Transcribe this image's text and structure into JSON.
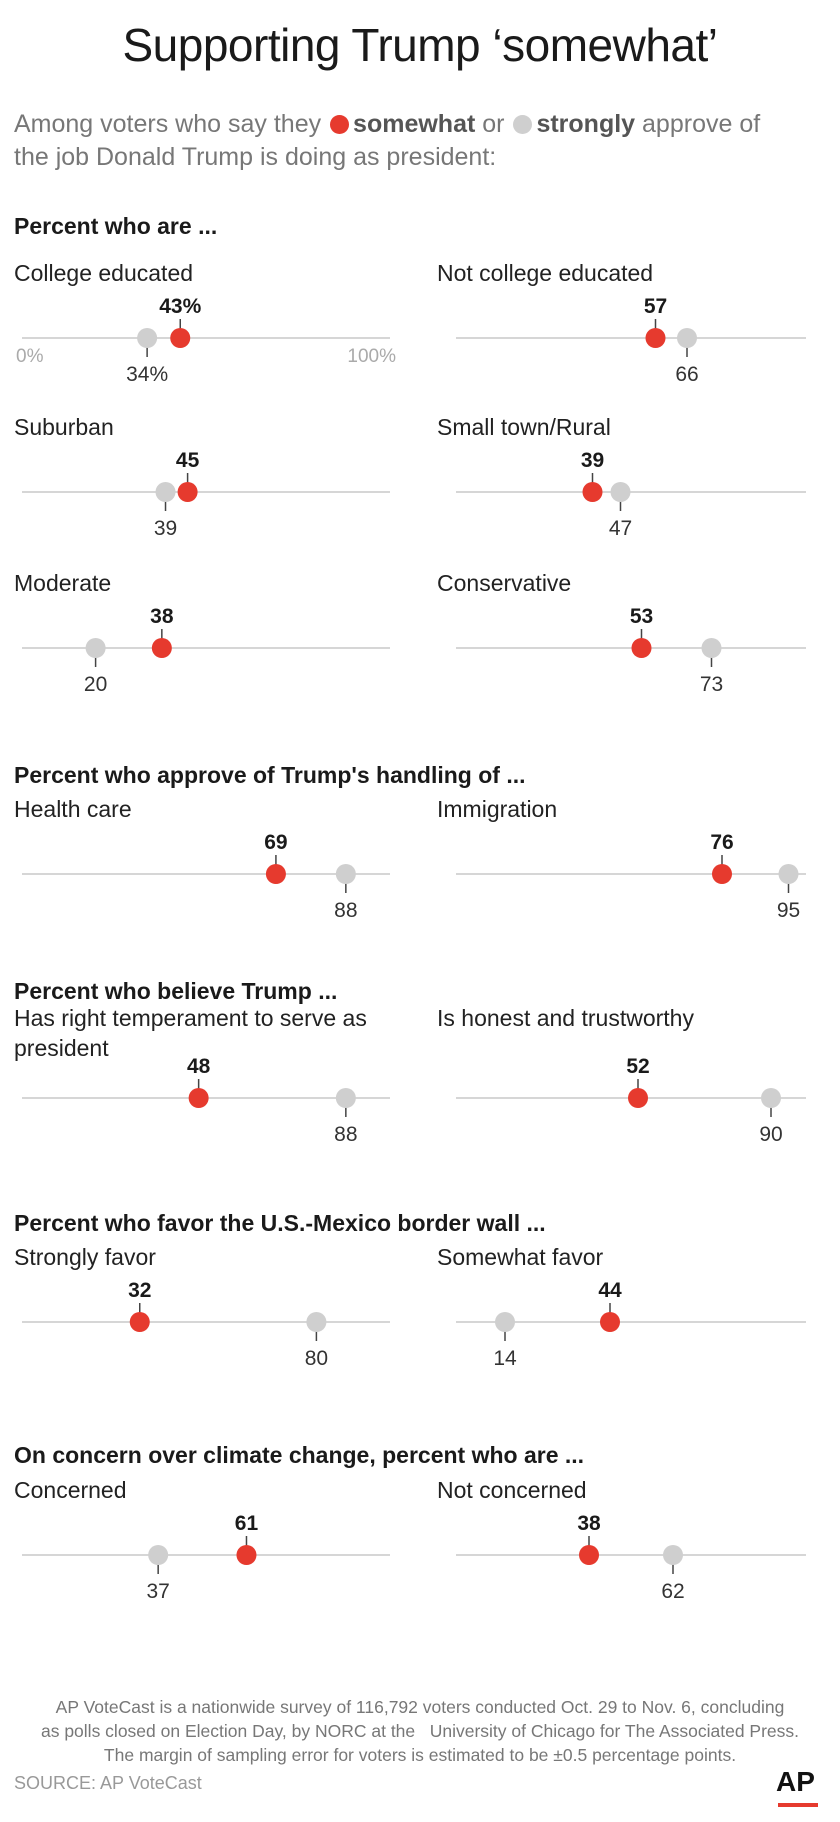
{
  "colors": {
    "somewhat": "#e63a2e",
    "strongly": "#cfcfcf"
  },
  "header": {
    "title": "Supporting Trump ‘somewhat’",
    "sub_pre": "Among voters who say they",
    "sub_somewhat": "somewhat",
    "sub_or": "or",
    "sub_strongly": "strongly",
    "sub_post": "approve of",
    "sub_line2": "the job Donald Trump is doing as president:"
  },
  "sections": {
    "s1": "Percent who are ...",
    "s2": "Percent who approve of Trump's handling of ...",
    "s3": "Percent who believe Trump ...",
    "s4": "Percent who favor the U.S.-Mexico border wall ...",
    "s5": "On concern over climate change, percent who are ..."
  },
  "chart_data": {
    "type": "dot",
    "axis_min_label": "0%",
    "axis_max_label": "100%",
    "xlim": [
      0,
      100
    ],
    "series": [
      {
        "name": "somewhat",
        "color": "#e63a2e"
      },
      {
        "name": "strongly",
        "color": "#cfcfcf"
      }
    ],
    "panels": [
      {
        "label": "College educated",
        "somewhat": 43,
        "strongly": 34,
        "somewhat_label": "43%",
        "strongly_label": "34%"
      },
      {
        "label": "Not college educated",
        "somewhat": 57,
        "strongly": 66,
        "somewhat_label": "57",
        "strongly_label": "66"
      },
      {
        "label": "Suburban",
        "somewhat": 45,
        "strongly": 39,
        "somewhat_label": "45",
        "strongly_label": "39"
      },
      {
        "label": "Small town/Rural",
        "somewhat": 39,
        "strongly": 47,
        "somewhat_label": "39",
        "strongly_label": "47"
      },
      {
        "label": "Moderate",
        "somewhat": 38,
        "strongly": 20,
        "somewhat_label": "38",
        "strongly_label": "20"
      },
      {
        "label": "Conservative",
        "somewhat": 53,
        "strongly": 73,
        "somewhat_label": "53",
        "strongly_label": "73"
      },
      {
        "label": "Health care",
        "somewhat": 69,
        "strongly": 88,
        "somewhat_label": "69",
        "strongly_label": "88"
      },
      {
        "label": "Immigration",
        "somewhat": 76,
        "strongly": 95,
        "somewhat_label": "76",
        "strongly_label": "95"
      },
      {
        "label": "Has right temperament to serve as president",
        "somewhat": 48,
        "strongly": 88,
        "somewhat_label": "48",
        "strongly_label": "88"
      },
      {
        "label": "Is honest and trustworthy",
        "somewhat": 52,
        "strongly": 90,
        "somewhat_label": "52",
        "strongly_label": "90"
      },
      {
        "label": "Strongly favor",
        "somewhat": 32,
        "strongly": 80,
        "somewhat_label": "32",
        "strongly_label": "80"
      },
      {
        "label": "Somewhat favor",
        "somewhat": 44,
        "strongly": 14,
        "somewhat_label": "44",
        "strongly_label": "14"
      },
      {
        "label": "Concerned",
        "somewhat": 61,
        "strongly": 37,
        "somewhat_label": "61",
        "strongly_label": "37"
      },
      {
        "label": "Not concerned",
        "somewhat": 38,
        "strongly": 62,
        "somewhat_label": "38",
        "strongly_label": "62"
      }
    ]
  },
  "footer": {
    "note_1": "AP VoteCast is a nationwide survey of 116,792 voters conducted Oct. 29 to Nov. 6, concluding",
    "note_2": "as polls closed on Election Day, by NORC at the   University of Chicago for The Associated Press.",
    "note_3": "The margin of sampling error for voters is estimated to be ±0.5 percentage points.",
    "source": "SOURCE: AP VoteCast",
    "logo": "AP"
  }
}
